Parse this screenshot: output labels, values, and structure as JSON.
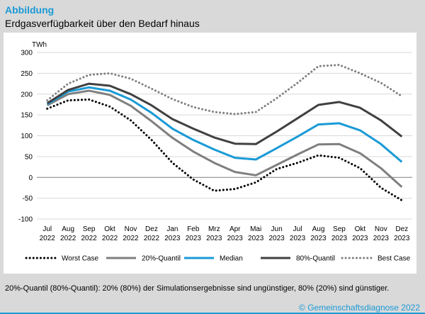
{
  "header": {
    "label": "Abbildung",
    "title": "Erdgasverfügbarkeit über den Bedarf hinaus"
  },
  "footnote": "20%-Quantil (80%-Quantil): 20% (80%) der Simulationsergebnisse sind ungünstiger, 80% (20%) sind günstiger.",
  "source": "© Gemeinschaftsdiagnose 2022",
  "chart_data": {
    "type": "line",
    "title": "",
    "unit_label": "TWh",
    "ylim": [
      -100,
      300
    ],
    "yticks": [
      -100,
      -50,
      0,
      50,
      100,
      150,
      200,
      250,
      300
    ],
    "grid": true,
    "legend_position": "bottom",
    "categories": [
      [
        "Jul",
        "2022"
      ],
      [
        "Aug",
        "2022"
      ],
      [
        "Sep",
        "2022"
      ],
      [
        "Okt",
        "2022"
      ],
      [
        "Nov",
        "2022"
      ],
      [
        "Dez",
        "2022"
      ],
      [
        "Jan",
        "2023"
      ],
      [
        "Feb",
        "2023"
      ],
      [
        "Mrz",
        "2023"
      ],
      [
        "Apr",
        "2023"
      ],
      [
        "Mai",
        "2023"
      ],
      [
        "Jun",
        "2023"
      ],
      [
        "Jul",
        "2023"
      ],
      [
        "Aug",
        "2023"
      ],
      [
        "Sep",
        "2023"
      ],
      [
        "Okt",
        "2023"
      ],
      [
        "Nov",
        "2023"
      ],
      [
        "Dez",
        "2023"
      ]
    ],
    "series": [
      {
        "name": "Worst Case",
        "color": "#000000",
        "style": "dotted",
        "values": [
          165,
          185,
          187,
          170,
          137,
          90,
          35,
          -5,
          -32,
          -28,
          -12,
          20,
          35,
          53,
          47,
          22,
          -25,
          -55
        ]
      },
      {
        "name": "20%-Quantil",
        "color": "#7f7f7f",
        "style": "solid",
        "values": [
          173,
          200,
          208,
          198,
          172,
          135,
          95,
          62,
          35,
          13,
          5,
          30,
          55,
          79,
          80,
          58,
          22,
          -23
        ]
      },
      {
        "name": "Median",
        "color": "#1a9ad6",
        "style": "solid",
        "values": [
          176,
          206,
          216,
          208,
          187,
          155,
          117,
          90,
          67,
          47,
          43,
          70,
          98,
          127,
          130,
          113,
          80,
          37
        ]
      },
      {
        "name": "80%-Quantil",
        "color": "#404040",
        "style": "solid",
        "values": [
          178,
          210,
          225,
          220,
          200,
          173,
          140,
          117,
          96,
          81,
          80,
          110,
          142,
          174,
          181,
          167,
          137,
          98
        ]
      },
      {
        "name": "Best Case",
        "color": "#7f7f7f",
        "style": "dotted",
        "values": [
          185,
          225,
          246,
          250,
          237,
          213,
          188,
          169,
          157,
          152,
          157,
          190,
          227,
          267,
          270,
          250,
          227,
          195
        ]
      }
    ]
  }
}
